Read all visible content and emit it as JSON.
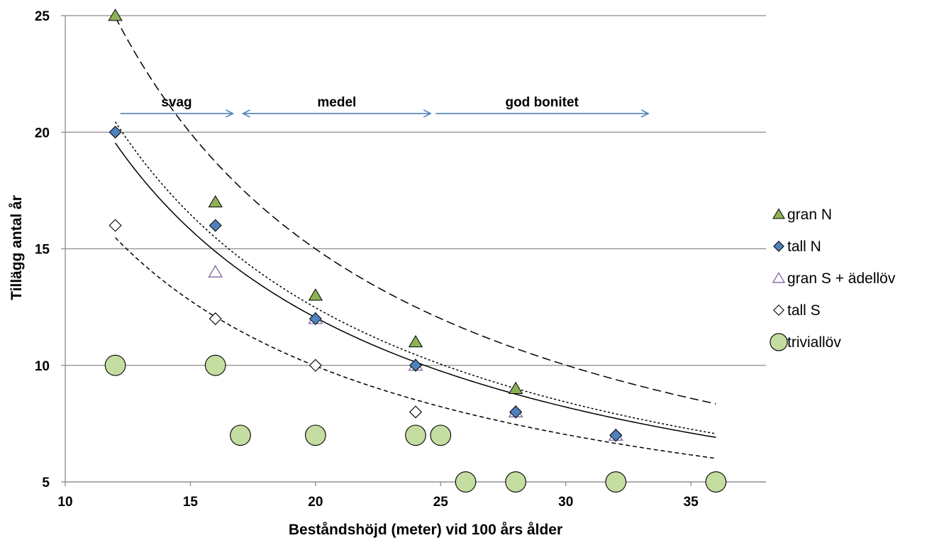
{
  "chart_data": {
    "type": "scatter",
    "title": "",
    "xlabel": "Beståndshöjd (meter) vid 100 års ålder",
    "ylabel": "Tillägg  antal år",
    "xlim": [
      10,
      38
    ],
    "ylim": [
      5,
      25
    ],
    "xticks": [
      "10",
      "15",
      "20",
      "25",
      "30",
      "35"
    ],
    "yticks": [
      "5",
      "10",
      "15",
      "20",
      "25"
    ],
    "grid": "horizontal",
    "legend_position": "right",
    "series": [
      {
        "name": "gran N",
        "marker": "triangle",
        "color": "#8DB255",
        "points": [
          [
            12,
            25
          ],
          [
            16,
            17
          ],
          [
            20,
            13
          ],
          [
            24,
            11
          ],
          [
            28,
            9
          ],
          [
            32,
            7
          ]
        ]
      },
      {
        "name": "tall N",
        "marker": "diamond",
        "color": "#4F81BD",
        "points": [
          [
            12,
            20
          ],
          [
            16,
            16
          ],
          [
            20,
            12
          ],
          [
            24,
            10
          ],
          [
            28,
            8
          ],
          [
            32,
            7
          ]
        ]
      },
      {
        "name": "gran S + ädellöv",
        "marker": "triangle-open",
        "color": "#8064A2",
        "points": [
          [
            16,
            14
          ],
          [
            20,
            12
          ],
          [
            24,
            10
          ],
          [
            28,
            8
          ],
          [
            32,
            7
          ]
        ]
      },
      {
        "name": "tall S",
        "marker": "diamond-open",
        "color": "#000000",
        "points": [
          [
            12,
            16
          ],
          [
            16,
            12
          ],
          [
            20,
            10
          ],
          [
            24,
            8
          ],
          [
            28,
            8
          ],
          [
            32,
            7
          ]
        ]
      },
      {
        "name": "triviallöv",
        "marker": "circle",
        "color": "#C4DDA0",
        "points": [
          [
            12,
            10
          ],
          [
            16,
            10
          ],
          [
            17,
            7
          ],
          [
            20,
            7
          ],
          [
            24,
            7
          ],
          [
            25,
            7
          ],
          [
            26,
            5
          ],
          [
            28,
            5
          ],
          [
            32,
            5
          ],
          [
            36,
            5
          ]
        ]
      }
    ],
    "trendlines": [
      {
        "style": "long-dash",
        "a": 296.3,
        "b": -0.996
      },
      {
        "style": "short-dash",
        "a": 226.0,
        "b": -0.967
      },
      {
        "style": "solid",
        "a": 205.0,
        "b": -0.946
      },
      {
        "style": "medium-dash",
        "a": 131.5,
        "b": -0.861
      }
    ],
    "annotations": [
      {
        "text": "svag",
        "arrow_from": 12.2,
        "arrow_to": 16.7,
        "y": 20.8,
        "direction": "right"
      },
      {
        "text": "medel",
        "arrow_from": 17.1,
        "arrow_to": 24.6,
        "y": 20.8,
        "direction": "both"
      },
      {
        "text": "god bonitet",
        "arrow_from": 24.8,
        "arrow_to": 33.3,
        "y": 20.8,
        "direction": "right"
      }
    ]
  }
}
